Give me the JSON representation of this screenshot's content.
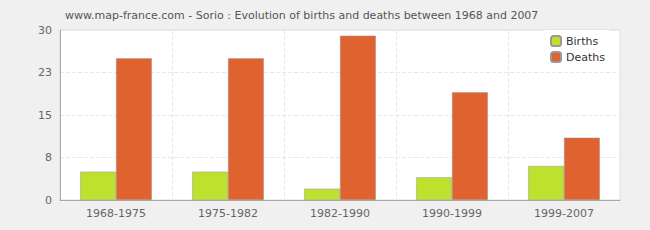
{
  "chart_data": {
    "type": "bar",
    "title": "www.map-france.com - Sorio : Evolution of births and deaths between 1968 and 2007",
    "categories": [
      "1968-1975",
      "1975-1982",
      "1982-1990",
      "1990-1999",
      "1999-2007"
    ],
    "series": [
      {
        "name": "Births",
        "color": "#bde12d",
        "values": [
          5,
          5,
          2,
          4,
          6
        ]
      },
      {
        "name": "Deaths",
        "color": "#e0622f",
        "values": [
          25,
          25,
          29,
          19,
          11
        ]
      }
    ],
    "ylim": [
      0,
      30
    ],
    "yticks": [
      0,
      {
        "value": 7.5,
        "label": "8"
      },
      15,
      {
        "value": 22.5,
        "label": "23"
      },
      30
    ],
    "grid": true,
    "legend": "top-right"
  }
}
